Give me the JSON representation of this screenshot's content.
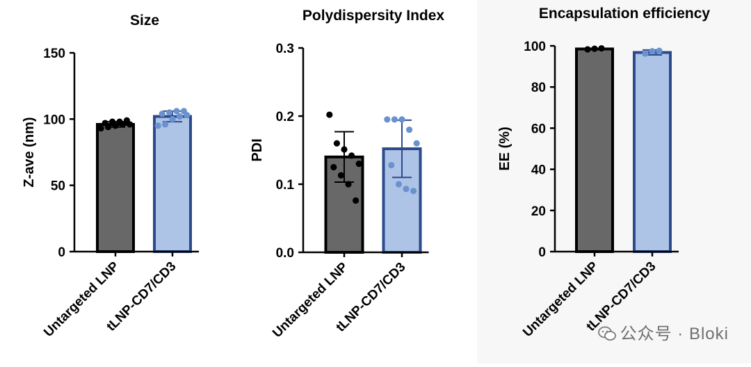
{
  "chart_data": [
    {
      "type": "bar",
      "title": "Size",
      "ylabel": "Z-ave (nm)",
      "xlabel": "",
      "ylim": [
        0,
        150
      ],
      "yticks": [
        0,
        50,
        100,
        150
      ],
      "tick_labels": [
        "0",
        "50",
        "100",
        "150"
      ],
      "categories": [
        "Untargeted LNP",
        "tLNP-CD7/CD3"
      ],
      "values": [
        96,
        102
      ],
      "errors": [
        2,
        4
      ],
      "fill_colors": [
        "#686868",
        "#aec4e6"
      ],
      "edge_colors": [
        "#000000",
        "#2c4a8c"
      ],
      "point_colors": [
        "#000000",
        "#6b92cf"
      ],
      "points": [
        [
          93,
          94,
          95,
          96,
          96,
          97,
          98,
          98,
          99
        ],
        [
          95,
          96,
          100,
          102,
          103,
          104,
          105,
          106,
          106
        ]
      ]
    },
    {
      "type": "bar",
      "title": "Polydispersity Index",
      "ylabel": "PDI",
      "xlabel": "",
      "ylim": [
        0,
        0.3
      ],
      "yticks": [
        0,
        0.1,
        0.2,
        0.3
      ],
      "tick_labels": [
        "0.0",
        "0.1",
        "0.2",
        "0.3"
      ],
      "categories": [
        "Untargeted LNP",
        "tLNP-CD7/CD3"
      ],
      "values": [
        0.14,
        0.152
      ],
      "errors": [
        0.037,
        0.042
      ],
      "fill_colors": [
        "#686868",
        "#aec4e6"
      ],
      "edge_colors": [
        "#000000",
        "#2c4a8c"
      ],
      "point_colors": [
        "#000000",
        "#6b92cf"
      ],
      "points": [
        [
          0.202,
          0.16,
          0.151,
          0.142,
          0.13,
          0.125,
          0.113,
          0.1,
          0.076
        ],
        [
          0.195,
          0.195,
          0.195,
          0.18,
          0.16,
          0.128,
          0.1,
          0.093,
          0.09
        ]
      ]
    },
    {
      "type": "bar",
      "title": "Encapsulation efficiency",
      "ylabel": "EE (%)",
      "xlabel": "",
      "ylim": [
        0,
        100
      ],
      "yticks": [
        0,
        20,
        40,
        60,
        80,
        100
      ],
      "tick_labels": [
        "0",
        "20",
        "40",
        "60",
        "80",
        "100"
      ],
      "categories": [
        "Untargeted LNP",
        "tLNP-CD7/CD3"
      ],
      "values": [
        98.5,
        96.8
      ],
      "errors": [
        0.3,
        1.2
      ],
      "fill_colors": [
        "#686868",
        "#aec4e6"
      ],
      "edge_colors": [
        "#000000",
        "#2c4a8c"
      ],
      "point_colors": [
        "#000000",
        "#6b92cf"
      ],
      "points": [
        [
          98.3,
          98.6,
          98.8
        ],
        [
          96.3,
          97.4,
          97.6
        ]
      ]
    }
  ],
  "watermark": {
    "text": "公众号 · Bloki",
    "icon": "wechat-icon"
  }
}
